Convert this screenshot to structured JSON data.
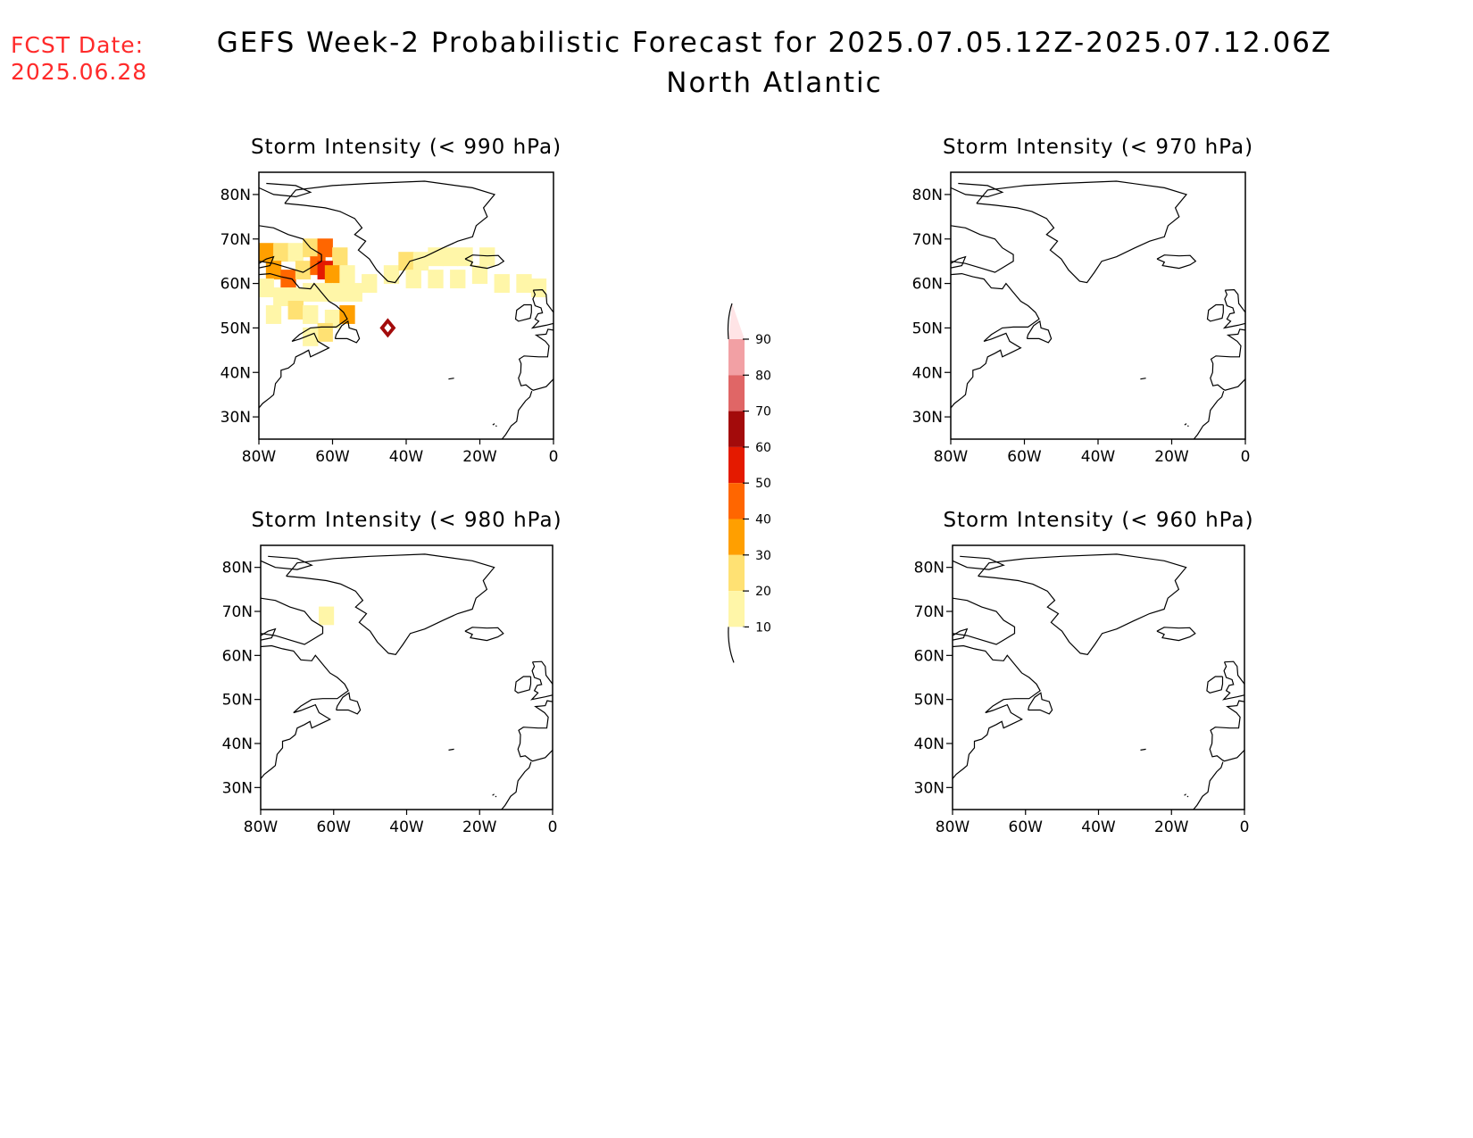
{
  "header": {
    "fcst_label": "FCST Date:",
    "fcst_date": "2025.06.28",
    "title": "GEFS Week-2 Probabilistic Forecast for 2025.07.05.12Z-2025.07.12.06Z",
    "subtitle": "North Atlantic"
  },
  "axes": {
    "lon_ticks": [
      "80W",
      "60W",
      "40W",
      "20W",
      "0"
    ],
    "lat_ticks": [
      "80N",
      "70N",
      "60N",
      "50N",
      "40N",
      "30N"
    ]
  },
  "panels": [
    {
      "title": "Storm Intensity (< 990 hPa)"
    },
    {
      "title": "Storm Intensity (< 970 hPa)"
    },
    {
      "title": "Storm Intensity (< 980 hPa)"
    },
    {
      "title": "Storm Intensity (< 960 hPa)"
    }
  ],
  "colorbar": {
    "labels": [
      "90",
      "80",
      "70",
      "60",
      "50",
      "40",
      "30",
      "20",
      "10"
    ],
    "colors": [
      "#ffe4e6",
      "#f2a0a4",
      "#e06666",
      "#a30b0b",
      "#e41a00",
      "#ff6600",
      "#ff9f00",
      "#ffe173",
      "#fff6a8"
    ]
  },
  "chart_data": {
    "type": "heatmap",
    "x_range_lon": [
      -80,
      0
    ],
    "y_range_lat": [
      25,
      85
    ],
    "units": "percent probability",
    "panels": [
      {
        "threshold": "< 990 hPa",
        "cells": [
          {
            "lon": -78,
            "lat": 67,
            "value": 35
          },
          {
            "lon": -74,
            "lat": 67,
            "value": 25
          },
          {
            "lon": -70,
            "lat": 67,
            "value": 18
          },
          {
            "lon": -66,
            "lat": 68,
            "value": 25
          },
          {
            "lon": -62,
            "lat": 68,
            "value": 45
          },
          {
            "lon": -58,
            "lat": 66,
            "value": 22
          },
          {
            "lon": -76,
            "lat": 63,
            "value": 35
          },
          {
            "lon": -72,
            "lat": 61,
            "value": 40
          },
          {
            "lon": -68,
            "lat": 63,
            "value": 20
          },
          {
            "lon": -64,
            "lat": 64,
            "value": 45
          },
          {
            "lon": -62,
            "lat": 63,
            "value": 52
          },
          {
            "lon": -60,
            "lat": 62,
            "value": 30
          },
          {
            "lon": -56,
            "lat": 62,
            "value": 18
          },
          {
            "lon": -78,
            "lat": 59,
            "value": 15
          },
          {
            "lon": -74,
            "lat": 57,
            "value": 18
          },
          {
            "lon": -70,
            "lat": 57,
            "value": 15
          },
          {
            "lon": -66,
            "lat": 58,
            "value": 18
          },
          {
            "lon": -62,
            "lat": 58,
            "value": 15
          },
          {
            "lon": -58,
            "lat": 58,
            "value": 14
          },
          {
            "lon": -54,
            "lat": 58,
            "value": 12
          },
          {
            "lon": -76,
            "lat": 53,
            "value": 15
          },
          {
            "lon": -70,
            "lat": 54,
            "value": 20
          },
          {
            "lon": -66,
            "lat": 53,
            "value": 15
          },
          {
            "lon": -60,
            "lat": 52,
            "value": 12
          },
          {
            "lon": -56,
            "lat": 53,
            "value": 30
          },
          {
            "lon": -62,
            "lat": 49,
            "value": 22
          },
          {
            "lon": -66,
            "lat": 48,
            "value": 12
          },
          {
            "lon": -45,
            "lat": 50,
            "value": 62
          },
          {
            "lon": -50,
            "lat": 60,
            "value": 12
          },
          {
            "lon": -44,
            "lat": 62,
            "value": 12
          },
          {
            "lon": -40,
            "lat": 65,
            "value": 25
          },
          {
            "lon": -36,
            "lat": 65,
            "value": 18
          },
          {
            "lon": -32,
            "lat": 66,
            "value": 15
          },
          {
            "lon": -28,
            "lat": 66,
            "value": 15
          },
          {
            "lon": -24,
            "lat": 66,
            "value": 12
          },
          {
            "lon": -18,
            "lat": 66,
            "value": 12
          },
          {
            "lon": -38,
            "lat": 61,
            "value": 12
          },
          {
            "lon": -32,
            "lat": 61,
            "value": 18
          },
          {
            "lon": -26,
            "lat": 61,
            "value": 15
          },
          {
            "lon": -20,
            "lat": 62,
            "value": 12
          },
          {
            "lon": -14,
            "lat": 60,
            "value": 12
          },
          {
            "lon": -8,
            "lat": 60,
            "value": 12
          },
          {
            "lon": -4,
            "lat": 59,
            "value": 12
          }
        ]
      },
      {
        "threshold": "< 970 hPa",
        "cells": []
      },
      {
        "threshold": "< 980 hPa",
        "cells": [
          {
            "lon": -62,
            "lat": 69,
            "value": 12
          }
        ]
      },
      {
        "threshold": "< 960 hPa",
        "cells": []
      }
    ]
  }
}
